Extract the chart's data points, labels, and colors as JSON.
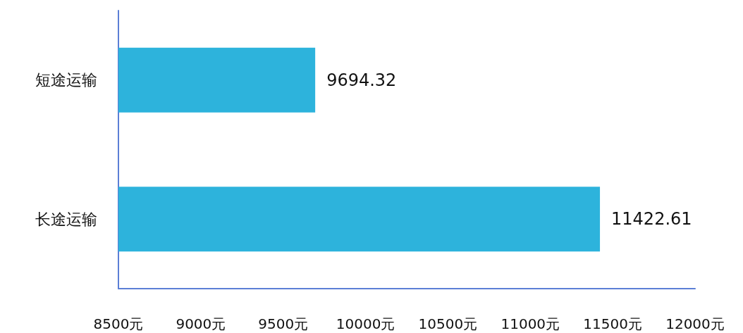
{
  "chart_data": {
    "type": "bar",
    "orientation": "horizontal",
    "categories": [
      "短途运输",
      "长途运输"
    ],
    "series": [
      {
        "color": "#2db3dc",
        "values": [
          9694.32,
          11422.61
        ]
      }
    ],
    "xlim": [
      8500,
      12000
    ],
    "xticks": [
      {
        "value": 8500,
        "label": "8500元"
      },
      {
        "value": 9000,
        "label": "9000元"
      },
      {
        "value": 9500,
        "label": "9500元"
      },
      {
        "value": 10000,
        "label": "10000元"
      },
      {
        "value": 10500,
        "label": "10500元"
      },
      {
        "value": 11000,
        "label": "11000元"
      },
      {
        "value": 11500,
        "label": "11500元"
      },
      {
        "value": 12000,
        "label": "12000元"
      }
    ],
    "data_labels": true
  }
}
